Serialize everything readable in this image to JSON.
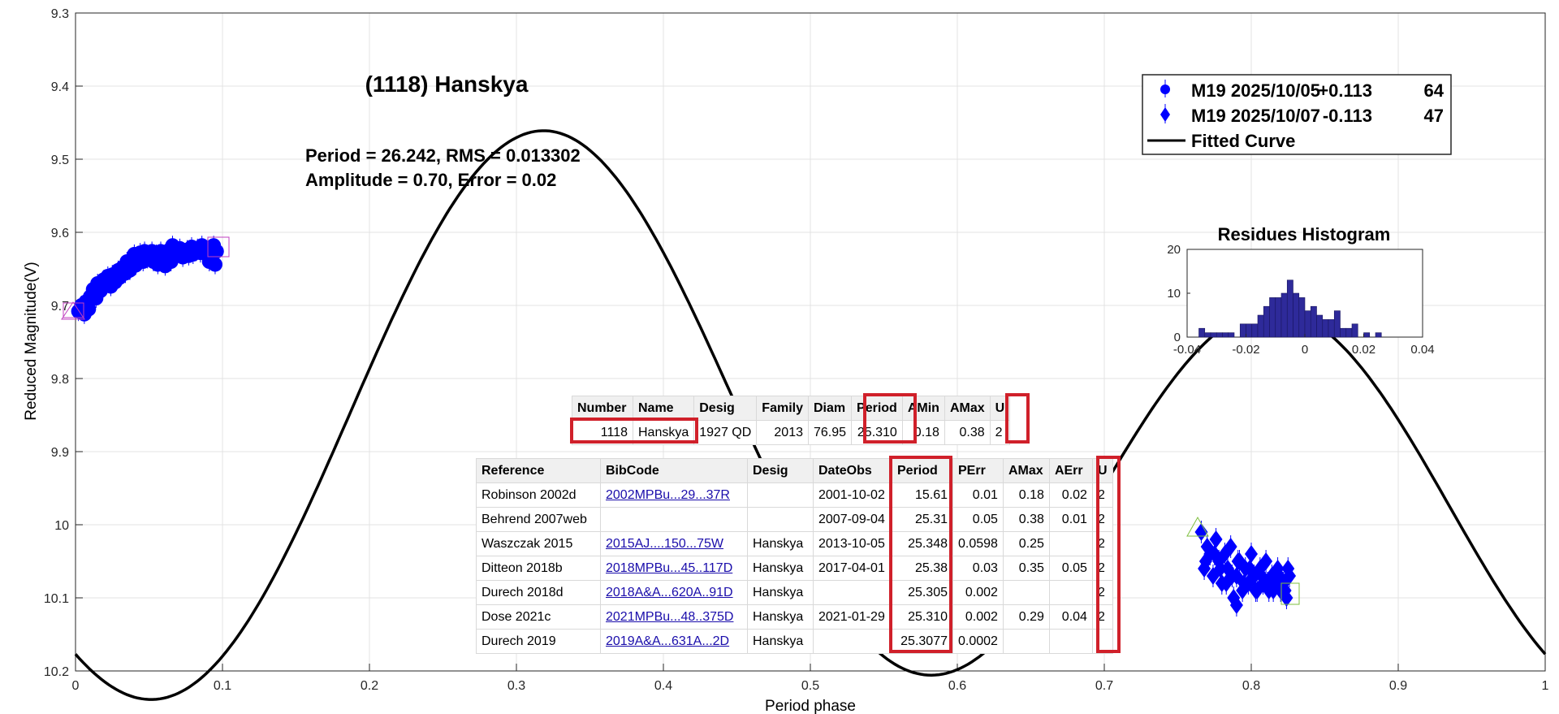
{
  "chart_data": {
    "type": "scatter",
    "title": "(1118) Hanskya",
    "xlabel": "Period phase",
    "ylabel": "Reduced Magnitude(V)",
    "xlim": [
      0,
      1
    ],
    "ylim": [
      10.2,
      9.3
    ],
    "y_reversed": true,
    "grid": true,
    "xticks": [
      0,
      0.1,
      0.2,
      0.3,
      0.4,
      0.5,
      0.6,
      0.7,
      0.8,
      0.9,
      1
    ],
    "xtick_labels": [
      "0",
      "0.1",
      "0.2",
      "0.3",
      "0.4",
      "0.5",
      "0.6",
      "0.7",
      "0.8",
      "0.9",
      "1"
    ],
    "yticks": [
      9.3,
      9.4,
      9.5,
      9.6,
      9.7,
      9.8,
      9.9,
      10,
      10.1,
      10.2
    ],
    "ytick_labels": [
      "9.3",
      "9.4",
      "9.5",
      "9.6",
      "9.7",
      "9.8",
      "9.9",
      "10",
      "10.1",
      "10.2"
    ],
    "annotation_lines": [
      "Period =  26.242, RMS = 0.013302",
      "Amplitude = 0.70, Error = 0.02"
    ],
    "legend": {
      "placement": "top-right",
      "entries": [
        {
          "label": "M19 2025/10/05",
          "offset": "+0.113",
          "count": "64"
        },
        {
          "label": "M19 2025/10/07",
          "offset": "-0.113",
          "count": "47"
        },
        {
          "label": "Fitted Curve"
        }
      ]
    },
    "series": [
      {
        "name": "M19 2025/10/05",
        "marker": "circle",
        "color": "#0000ff",
        "x": [
          0.002,
          0.004,
          0.006,
          0.007,
          0.009,
          0.01,
          0.012,
          0.014,
          0.015,
          0.017,
          0.019,
          0.02,
          0.022,
          0.024,
          0.025,
          0.027,
          0.029,
          0.03,
          0.032,
          0.034,
          0.035,
          0.037,
          0.039,
          0.04,
          0.041,
          0.043,
          0.044,
          0.046,
          0.047,
          0.049,
          0.05,
          0.052,
          0.053,
          0.055,
          0.056,
          0.058,
          0.059,
          0.061,
          0.062,
          0.064,
          0.065,
          0.066,
          0.068,
          0.07,
          0.071,
          0.073,
          0.074,
          0.076,
          0.077,
          0.079,
          0.08,
          0.082,
          0.083,
          0.085,
          0.086,
          0.087,
          0.089,
          0.09,
          0.091,
          0.092,
          0.093,
          0.094,
          0.095,
          0.096
        ],
        "y": [
          9.708,
          9.7,
          9.712,
          9.695,
          9.705,
          9.688,
          9.678,
          9.69,
          9.67,
          9.68,
          9.665,
          9.672,
          9.66,
          9.674,
          9.658,
          9.668,
          9.652,
          9.662,
          9.648,
          9.656,
          9.64,
          9.652,
          9.638,
          9.63,
          9.645,
          9.634,
          9.628,
          9.64,
          9.626,
          9.636,
          9.632,
          9.626,
          9.64,
          9.63,
          9.644,
          9.626,
          9.636,
          9.646,
          9.632,
          9.624,
          9.64,
          9.618,
          9.63,
          9.626,
          9.622,
          9.634,
          9.628,
          9.624,
          9.632,
          9.62,
          9.63,
          9.626,
          9.622,
          9.628,
          9.618,
          9.624,
          9.63,
          9.622,
          9.64,
          9.636,
          9.63,
          9.618,
          9.644,
          9.626
        ]
      },
      {
        "name": "M19 2025/10/07",
        "marker": "diamond",
        "color": "#0000ff",
        "x": [
          0.766,
          0.768,
          0.77,
          0.772,
          0.774,
          0.776,
          0.778,
          0.78,
          0.782,
          0.784,
          0.786,
          0.788,
          0.79,
          0.792,
          0.794,
          0.796,
          0.798,
          0.8,
          0.802,
          0.804,
          0.806,
          0.808,
          0.81,
          0.812,
          0.814,
          0.816,
          0.818,
          0.82,
          0.822,
          0.824,
          0.826,
          0.769,
          0.775,
          0.779,
          0.783,
          0.787,
          0.791,
          0.795,
          0.799,
          0.803,
          0.807,
          0.811,
          0.815,
          0.819,
          0.823,
          0.825,
          0.79
        ],
        "y": [
          10.01,
          10.06,
          10.03,
          10.04,
          10.07,
          10.02,
          10.05,
          10.08,
          10.04,
          10.06,
          10.03,
          10.1,
          10.07,
          10.05,
          10.09,
          10.06,
          10.08,
          10.04,
          10.07,
          10.09,
          10.06,
          10.08,
          10.05,
          10.09,
          10.07,
          10.08,
          10.06,
          10.09,
          10.08,
          10.1,
          10.07,
          10.05,
          10.04,
          10.06,
          10.08,
          10.07,
          10.05,
          10.08,
          10.06,
          10.09,
          10.07,
          10.08,
          10.09,
          10.07,
          10.09,
          10.06,
          10.11
        ]
      }
    ],
    "fitted_curve": {
      "name": "Fitted Curve",
      "color": "#000000",
      "mean": 9.9,
      "terms": [
        {
          "harmonic": 1,
          "cos": 0.065,
          "sin": -0.105
        },
        {
          "harmonic": 2,
          "cos": 0.212,
          "sin": 0.235
        }
      ]
    },
    "histogram": {
      "title": "Residues Histogram",
      "xlim": [
        -0.04,
        0.04
      ],
      "ylim": [
        0,
        20
      ],
      "xtick_labels": [
        "-0.04",
        "-0.02",
        "0",
        "0.02",
        "0.04"
      ],
      "ytick_labels": [
        "0",
        "10",
        "20"
      ],
      "bin_start": -0.036,
      "bin_width": 0.002,
      "counts": [
        2,
        1,
        1,
        1,
        1,
        1,
        0,
        3,
        3,
        3,
        5,
        7,
        9,
        9,
        10,
        13,
        10,
        9,
        6,
        7,
        5,
        4,
        4,
        6,
        2,
        2,
        3,
        0,
        1,
        0,
        1,
        0,
        0,
        0,
        0,
        0
      ],
      "color": "#2e2a9a"
    }
  },
  "table1": {
    "headers": [
      "Number",
      "Name",
      "Desig",
      "Family",
      "Diam",
      "Period",
      "AMin",
      "AMax",
      "U"
    ],
    "row": [
      "1118",
      "Hanskya",
      "1927 QD",
      "2013",
      "76.95",
      "25.310",
      "0.18",
      "0.38",
      "2"
    ]
  },
  "table2": {
    "headers": [
      "Reference",
      "BibCode",
      "Desig",
      "DateObs",
      "Period",
      "PErr",
      "AMax",
      "AErr",
      "U"
    ],
    "rows": [
      [
        "Robinson 2002d",
        "2002MPBu...29...37R",
        "",
        "2001-10-02",
        "15.61",
        "0.01",
        "0.18",
        "0.02",
        "2"
      ],
      [
        "Behrend 2007web",
        "",
        "",
        "2007-09-04",
        "25.31",
        "0.05",
        "0.38",
        "0.01",
        "2"
      ],
      [
        "Waszczak 2015",
        "2015AJ....150...75W",
        "Hanskya",
        "2013-10-05",
        "25.348",
        "0.0598",
        "0.25",
        "",
        "2"
      ],
      [
        "Ditteon 2018b",
        "2018MPBu...45..117D",
        "Hanskya",
        "2017-04-01",
        "25.38",
        "0.03",
        "0.35",
        "0.05",
        "2"
      ],
      [
        "Durech 2018d",
        "2018A&A...620A..91D",
        "Hanskya",
        "",
        "25.305",
        "0.002",
        "",
        "",
        "2"
      ],
      [
        "Dose 2021c",
        "2021MPBu...48..375D",
        "Hanskya",
        "2021-01-29",
        "25.310",
        "0.002",
        "0.29",
        "0.04",
        "2"
      ],
      [
        "Durech 2019",
        "2019A&A...631A...2D",
        "Hanskya",
        "",
        "25.3077",
        "0.0002",
        "",
        "",
        ""
      ]
    ]
  }
}
